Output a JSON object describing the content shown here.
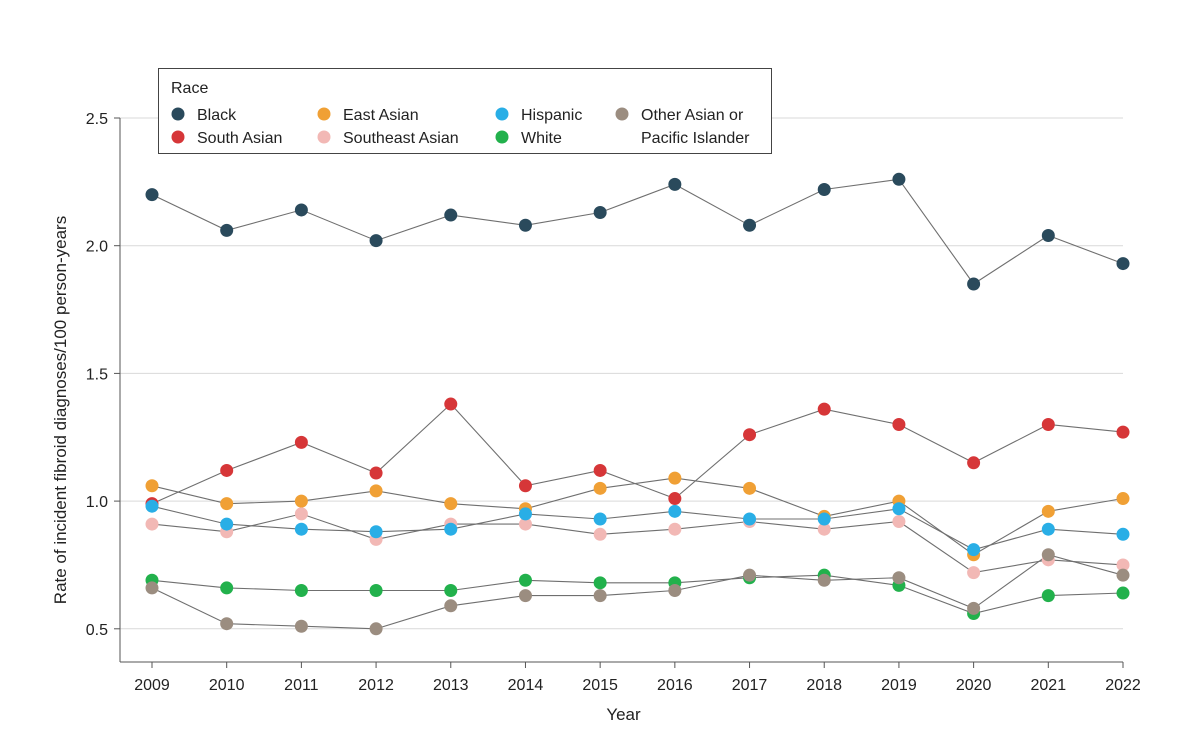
{
  "chart_data": {
    "type": "line",
    "title": "",
    "xlabel": "Year",
    "ylabel": "Rate of incident fibroid diagnoses/100 person-years",
    "ylim": [
      0.37,
      2.5
    ],
    "yticks": [
      "0.5",
      "1.0",
      "1.5",
      "2.0",
      "2.5"
    ],
    "ytick_values": [
      0.5,
      1.0,
      1.5,
      2.0,
      2.5
    ],
    "grid": "horizontal",
    "legend_position": "top-left",
    "legend_title": "Race",
    "x": [
      "2009",
      "2010",
      "2011",
      "2012",
      "2013",
      "2014",
      "2015",
      "2016",
      "2017",
      "2018",
      "2019",
      "2020",
      "2021",
      "2022"
    ],
    "series": [
      {
        "name": "Black",
        "color": "#2a4a5c",
        "values": [
          2.2,
          2.06,
          2.14,
          2.02,
          2.12,
          2.08,
          2.13,
          2.24,
          2.08,
          2.22,
          2.26,
          1.85,
          2.04,
          1.93
        ]
      },
      {
        "name": "South Asian",
        "color": "#d63638",
        "values": [
          0.99,
          1.12,
          1.23,
          1.11,
          1.38,
          1.06,
          1.12,
          1.01,
          1.26,
          1.36,
          1.3,
          1.15,
          1.3,
          1.27
        ]
      },
      {
        "name": "East Asian",
        "color": "#f0a035",
        "values": [
          1.06,
          0.99,
          1.0,
          1.04,
          0.99,
          0.97,
          1.05,
          1.09,
          1.05,
          0.94,
          1.0,
          0.79,
          0.96,
          1.01
        ]
      },
      {
        "name": "Southeast Asian",
        "color": "#f2b8b5",
        "values": [
          0.91,
          0.88,
          0.95,
          0.85,
          0.91,
          0.91,
          0.87,
          0.89,
          0.92,
          0.89,
          0.92,
          0.72,
          0.77,
          0.75
        ]
      },
      {
        "name": "Hispanic",
        "color": "#29aee6",
        "values": [
          0.98,
          0.91,
          0.89,
          0.88,
          0.89,
          0.95,
          0.93,
          0.96,
          0.93,
          0.93,
          0.97,
          0.81,
          0.89,
          0.87
        ]
      },
      {
        "name": "White",
        "color": "#22b14c",
        "values": [
          0.69,
          0.66,
          0.65,
          0.65,
          0.65,
          0.69,
          0.68,
          0.68,
          0.7,
          0.71,
          0.67,
          0.56,
          0.63,
          0.64
        ]
      },
      {
        "name": "Other Asian or Pacific Islander",
        "color": "#9b8d80",
        "values": [
          0.66,
          0.52,
          0.51,
          0.5,
          0.59,
          0.63,
          0.63,
          0.65,
          0.71,
          0.69,
          0.7,
          0.58,
          0.79,
          0.71
        ]
      }
    ],
    "legend_labels": [
      {
        "series": "Black",
        "lines": [
          "Black"
        ]
      },
      {
        "series": "South Asian",
        "lines": [
          "South Asian"
        ]
      },
      {
        "series": "East Asian",
        "lines": [
          "East Asian"
        ]
      },
      {
        "series": "Southeast Asian",
        "lines": [
          "Southeast Asian"
        ]
      },
      {
        "series": "Hispanic",
        "lines": [
          "Hispanic"
        ]
      },
      {
        "series": "White",
        "lines": [
          "White"
        ]
      },
      {
        "series": "Other Asian or Pacific Islander",
        "lines": [
          "Other Asian or",
          "Pacific Islander"
        ]
      }
    ]
  }
}
